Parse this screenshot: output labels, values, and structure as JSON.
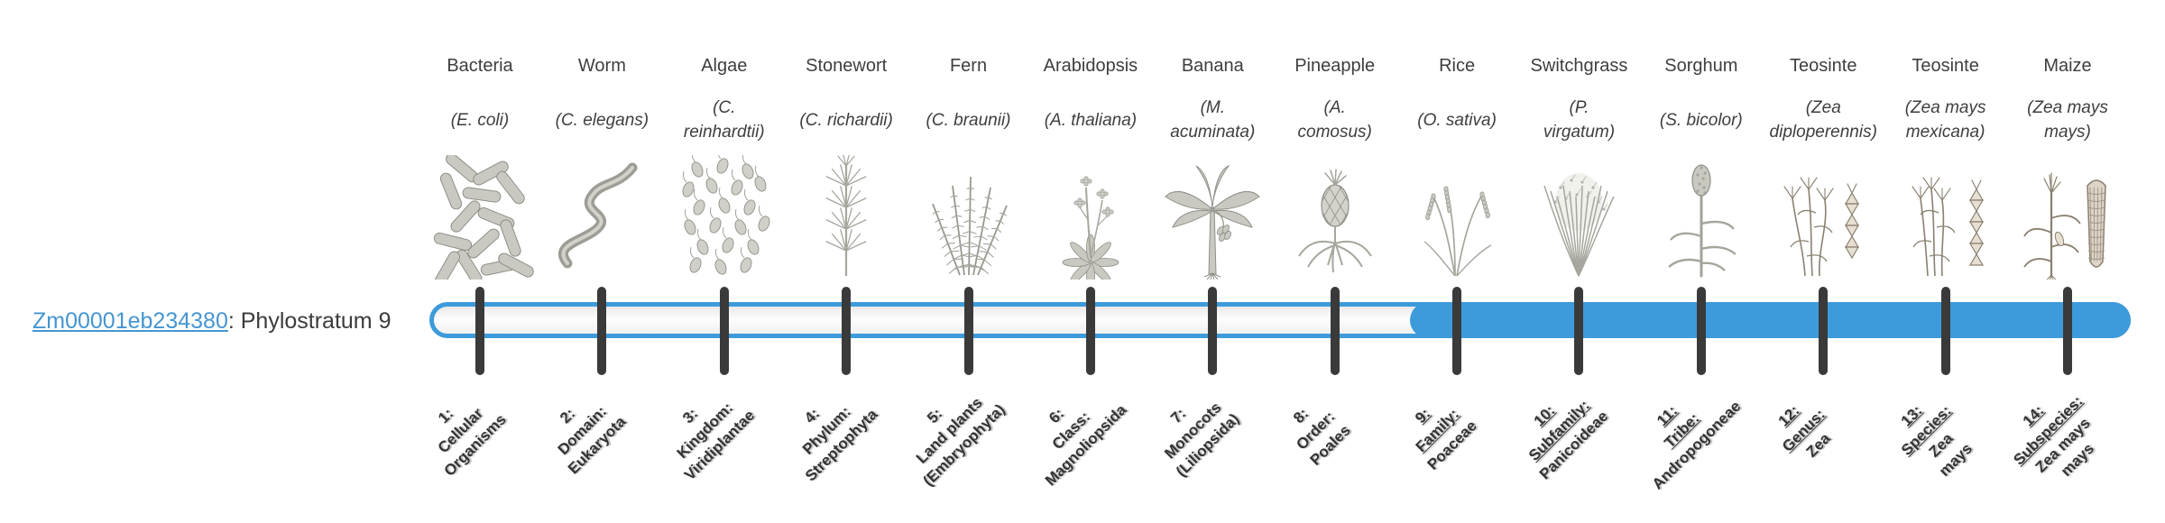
{
  "gene": {
    "id": "Zm00001eb234380",
    "label_suffix": ": Phylostratum 9",
    "link_color": "#4695d1"
  },
  "timeline": {
    "bar_color": "#3d9bdb",
    "track_fill": "#f7f7f7",
    "tick_color": "#3a3a3a",
    "strata_count": 14,
    "highlight_start_stratum": 9
  },
  "organisms": [
    {
      "name": "Bacteria",
      "scientific": [
        "(E. coli)"
      ],
      "icon": "bacteria-icon",
      "stratum_label": [
        "1:",
        "Cellular",
        "Organisms"
      ],
      "underline_count": 0,
      "linked": false
    },
    {
      "name": "Worm",
      "scientific": [
        "(C. elegans)"
      ],
      "icon": "worm-icon",
      "stratum_label": [
        "2:",
        "Domain:",
        "Eukaryota"
      ],
      "underline_count": 0,
      "linked": false
    },
    {
      "name": "Algae",
      "scientific": [
        "(C.",
        "reinhardtii)"
      ],
      "icon": "algae-icon",
      "stratum_label": [
        "3:",
        "Kingdom:",
        "Viridiplantae"
      ],
      "underline_count": 0,
      "linked": false
    },
    {
      "name": "Stonewort",
      "scientific": [
        "(C. richardii)"
      ],
      "icon": "stonewort-icon",
      "stratum_label": [
        "4:",
        "Phylum:",
        "Streptophyta"
      ],
      "underline_count": 0,
      "linked": false
    },
    {
      "name": "Fern",
      "scientific": [
        "(C. braunii)"
      ],
      "icon": "fern-icon",
      "stratum_label": [
        "5:",
        "Land plants",
        "(Embryophyta)"
      ],
      "underline_count": 0,
      "linked": false
    },
    {
      "name": "Arabidopsis",
      "scientific": [
        "(A. thaliana)"
      ],
      "icon": "arabidopsis-icon",
      "stratum_label": [
        "6:",
        "Class:",
        "Magnoliopsida"
      ],
      "underline_count": 0,
      "linked": false
    },
    {
      "name": "Banana",
      "scientific": [
        "(M.",
        "acuminata)"
      ],
      "icon": "banana-icon",
      "stratum_label": [
        "7:",
        "Monocots",
        "(Liliopsida)"
      ],
      "underline_count": 0,
      "linked": false
    },
    {
      "name": "Pineapple",
      "scientific": [
        "(A.",
        "comosus)"
      ],
      "icon": "pineapple-icon",
      "stratum_label": [
        "8:",
        "Order:",
        "Poales"
      ],
      "underline_count": 0,
      "linked": false
    },
    {
      "name": "Rice",
      "scientific": [
        "(O. sativa)"
      ],
      "icon": "rice-icon",
      "stratum_label": [
        "9:",
        "Family:",
        "Poaceae"
      ],
      "underline_count": 2,
      "linked": true
    },
    {
      "name": "Switchgrass",
      "scientific": [
        "(P.",
        "virgatum)"
      ],
      "icon": "switchgrass-icon",
      "stratum_label": [
        "10:",
        "Subfamily:",
        "Panicoideae"
      ],
      "underline_count": 2,
      "linked": true
    },
    {
      "name": "Sorghum",
      "scientific": [
        "(S. bicolor)"
      ],
      "icon": "sorghum-icon",
      "stratum_label": [
        "11:",
        "Tribe:",
        "Andropogoneae"
      ],
      "underline_count": 2,
      "linked": true
    },
    {
      "name": "Teosinte",
      "scientific": [
        "(Zea",
        "diploperennis)"
      ],
      "icon": "teosinte-diploperennis-icon",
      "stratum_label": [
        "12:",
        "Genus:",
        "Zea"
      ],
      "underline_count": 2,
      "linked": true
    },
    {
      "name": "Teosinte",
      "scientific": [
        "(Zea mays",
        "mexicana)"
      ],
      "icon": "teosinte-mexicana-icon",
      "stratum_label": [
        "13:",
        "Species:",
        "Zea",
        "mays"
      ],
      "underline_count": 2,
      "linked": true
    },
    {
      "name": "Maize",
      "scientific": [
        "(Zea mays",
        "mays)"
      ],
      "icon": "maize-icon",
      "stratum_label": [
        "14:",
        "Subspecies:",
        "Zea mays",
        "mays"
      ],
      "underline_count": 2,
      "linked": true
    }
  ]
}
